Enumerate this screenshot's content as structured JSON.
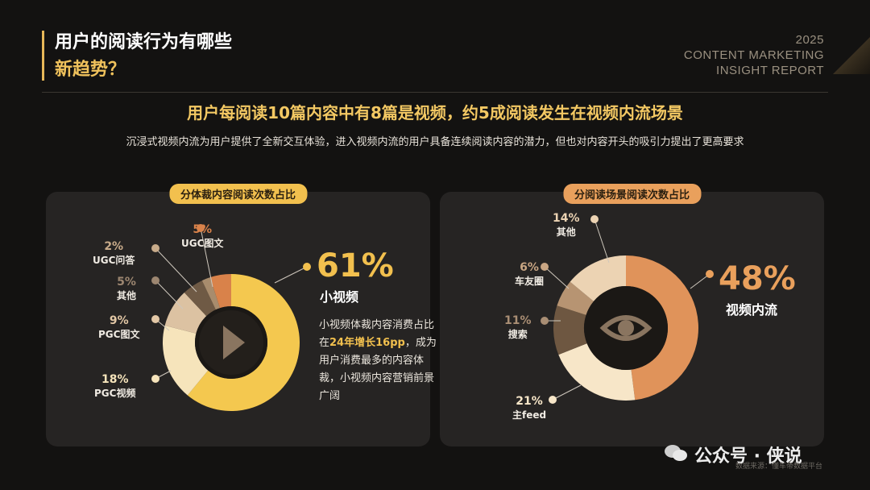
{
  "header": {
    "title_line1": "用户的阅读行为有哪些",
    "title_line2": "新趋势？",
    "report_year": "2025",
    "report_line1": "CONTENT MARKETING",
    "report_line2": "INSIGHT REPORT"
  },
  "headline": "用户每阅读10篇内容中有8篇是视频，约5成阅读发生在视频内流场景",
  "subline": "沉浸式视频内流为用户提供了全新交互体验，进入视频内流的用户具备连续阅读内容的潜力，但也对内容开头的吸引力提出了更高要求",
  "left_panel": {
    "title": "分体裁内容阅读次数占比",
    "big_pct": "61%",
    "big_name": "小视频",
    "desc_pre": "小视频体裁内容消费占比在",
    "desc_hl": "24年增长16pp",
    "desc_post": "，成为用户消费最多的内容体裁，小视频内容营销前景广阔",
    "labels": [
      {
        "pct": "5%",
        "name": "UGC图文"
      },
      {
        "pct": "2%",
        "name": "UGC问答"
      },
      {
        "pct": "5%",
        "name": "其他"
      },
      {
        "pct": "9%",
        "name": "PGC图文"
      },
      {
        "pct": "18%",
        "name": "PGC视频"
      }
    ]
  },
  "right_panel": {
    "title": "分阅读场景阅读次数占比",
    "big_pct": "48%",
    "big_name": "视频内流",
    "labels": [
      {
        "pct": "14%",
        "name": "其他"
      },
      {
        "pct": "6%",
        "name": "车友圈"
      },
      {
        "pct": "11%",
        "name": "搜索"
      },
      {
        "pct": "21%",
        "name": "主feed"
      }
    ]
  },
  "chart_data": [
    {
      "type": "pie",
      "title": "分体裁内容阅读次数占比",
      "categories": [
        "小视频",
        "PGC视频",
        "PGC图文",
        "其他",
        "UGC问答",
        "UGC图文"
      ],
      "values": [
        61,
        18,
        9,
        5,
        2,
        5
      ],
      "colors": [
        "#f4c84f",
        "#f6e4bb",
        "#dcc2a2",
        "#6f5a45",
        "#a88c6d",
        "#d9824a"
      ]
    },
    {
      "type": "pie",
      "title": "分阅读场景阅读次数占比",
      "categories": [
        "视频内流",
        "主feed",
        "搜索",
        "车友圈",
        "其他"
      ],
      "values": [
        48,
        21,
        11,
        6,
        14
      ],
      "colors": [
        "#e0935a",
        "#f7e6c8",
        "#6e5741",
        "#b79472",
        "#ecd3b3"
      ]
    }
  ],
  "footer": {
    "watermark": "公众号 · 侠说",
    "source": "数据来源：懂车帝数据平台"
  }
}
